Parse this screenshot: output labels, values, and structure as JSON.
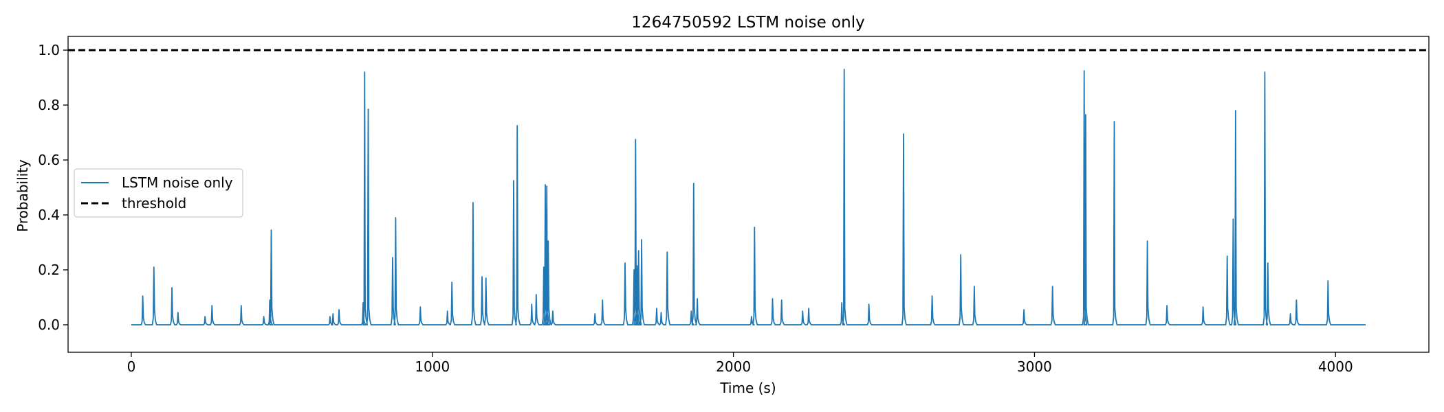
{
  "chart_data": {
    "type": "line",
    "title": "1264750592 LSTM noise only",
    "xlabel": "Time (s)",
    "ylabel": "Probability",
    "xlim": [
      -210,
      4310
    ],
    "ylim": [
      -0.1,
      1.05
    ],
    "xticks": [
      0,
      1000,
      2000,
      3000,
      4000
    ],
    "xtick_labels": [
      "0",
      "1000",
      "2000",
      "3000",
      "4000"
    ],
    "yticks": [
      0.0,
      0.2,
      0.4,
      0.6,
      0.8,
      1.0
    ],
    "ytick_labels": [
      "0.0",
      "0.2",
      "0.4",
      "0.6",
      "0.8",
      "1.0"
    ],
    "grid": false,
    "legend": {
      "position": "center-left",
      "entries": [
        "LSTM noise only",
        "threshold"
      ]
    },
    "series": [
      {
        "name": "LSTM noise only",
        "color": "#1f77b4",
        "style": "solid",
        "baseline": 0.0,
        "x_end": 4100,
        "peaks": [
          [
            38,
            0.105
          ],
          [
            75,
            0.21
          ],
          [
            135,
            0.135
          ],
          [
            155,
            0.045
          ],
          [
            245,
            0.03
          ],
          [
            268,
            0.07
          ],
          [
            365,
            0.07
          ],
          [
            440,
            0.03
          ],
          [
            460,
            0.09
          ],
          [
            465,
            0.345
          ],
          [
            660,
            0.03
          ],
          [
            670,
            0.04
          ],
          [
            690,
            0.055
          ],
          [
            770,
            0.08
          ],
          [
            775,
            0.92
          ],
          [
            787,
            0.785
          ],
          [
            868,
            0.245
          ],
          [
            878,
            0.39
          ],
          [
            960,
            0.065
          ],
          [
            1050,
            0.05
          ],
          [
            1065,
            0.155
          ],
          [
            1135,
            0.445
          ],
          [
            1165,
            0.175
          ],
          [
            1178,
            0.17
          ],
          [
            1270,
            0.525
          ],
          [
            1282,
            0.725
          ],
          [
            1330,
            0.075
          ],
          [
            1345,
            0.11
          ],
          [
            1370,
            0.21
          ],
          [
            1375,
            0.51
          ],
          [
            1380,
            0.505
          ],
          [
            1385,
            0.305
          ],
          [
            1400,
            0.05
          ],
          [
            1540,
            0.04
          ],
          [
            1565,
            0.09
          ],
          [
            1640,
            0.225
          ],
          [
            1670,
            0.2
          ],
          [
            1675,
            0.675
          ],
          [
            1680,
            0.215
          ],
          [
            1685,
            0.27
          ],
          [
            1695,
            0.31
          ],
          [
            1745,
            0.06
          ],
          [
            1760,
            0.045
          ],
          [
            1780,
            0.265
          ],
          [
            1860,
            0.05
          ],
          [
            1868,
            0.515
          ],
          [
            1880,
            0.095
          ],
          [
            2060,
            0.03
          ],
          [
            2070,
            0.355
          ],
          [
            2130,
            0.095
          ],
          [
            2160,
            0.09
          ],
          [
            2230,
            0.05
          ],
          [
            2250,
            0.06
          ],
          [
            2360,
            0.08
          ],
          [
            2368,
            0.93
          ],
          [
            2450,
            0.075
          ],
          [
            2565,
            0.695
          ],
          [
            2660,
            0.105
          ],
          [
            2755,
            0.255
          ],
          [
            2800,
            0.14
          ],
          [
            2965,
            0.055
          ],
          [
            3060,
            0.14
          ],
          [
            3165,
            0.925
          ],
          [
            3170,
            0.765
          ],
          [
            3265,
            0.74
          ],
          [
            3375,
            0.305
          ],
          [
            3440,
            0.07
          ],
          [
            3560,
            0.065
          ],
          [
            3640,
            0.25
          ],
          [
            3660,
            0.385
          ],
          [
            3668,
            0.78
          ],
          [
            3765,
            0.92
          ],
          [
            3775,
            0.225
          ],
          [
            3850,
            0.04
          ],
          [
            3870,
            0.09
          ],
          [
            3975,
            0.16
          ]
        ]
      },
      {
        "name": "threshold",
        "color": "#000000",
        "style": "dashed",
        "y": 1.0
      }
    ]
  }
}
